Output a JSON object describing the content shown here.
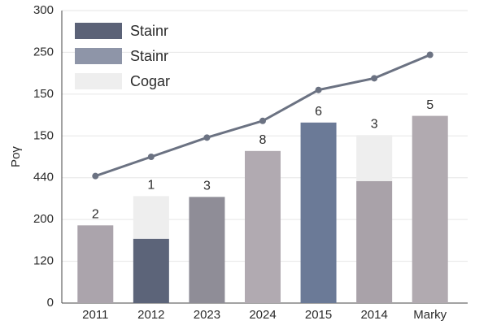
{
  "chart_data": {
    "type": "bar",
    "y_label": "Pογ",
    "categories": [
      "2011",
      "2012",
      "2023",
      "2024",
      "2015",
      "2014",
      "Marky"
    ],
    "series": [
      {
        "name": "Stainr",
        "type": "bar",
        "color": "#5b6277",
        "colors": [
          "#aba4ac",
          "#5c6479",
          "#8f8d97",
          "#b1aab1",
          "#6b7a97",
          "#a9a2a9",
          "#b1aab0"
        ],
        "values": [
          93,
          77,
          127,
          182,
          216,
          146,
          224
        ]
      },
      {
        "name": "Stainr",
        "type": "line",
        "color": "#8e95a8",
        "line_color": "#6b7282",
        "values": [
          152,
          175,
          198,
          218,
          255,
          269,
          297
        ]
      },
      {
        "name": "Cogar",
        "type": "bar",
        "color": "#eeeeee",
        "values": [
          null,
          51,
          null,
          null,
          null,
          55,
          null
        ]
      }
    ],
    "annotations": [
      "2",
      "1",
      "3",
      "8",
      "6",
      "3",
      "5"
    ],
    "ylim": [
      0,
      350
    ],
    "yticks": [
      0,
      {
        "value": 50,
        "label": "120"
      },
      {
        "value": 100,
        "label": "200"
      },
      {
        "value": 150,
        "label": "440"
      },
      {
        "value": 200,
        "label": "150"
      },
      {
        "value": 250,
        "label": "150"
      },
      {
        "value": 300,
        "label": "250"
      },
      {
        "value": 350,
        "label": "300"
      }
    ],
    "grid": true
  }
}
